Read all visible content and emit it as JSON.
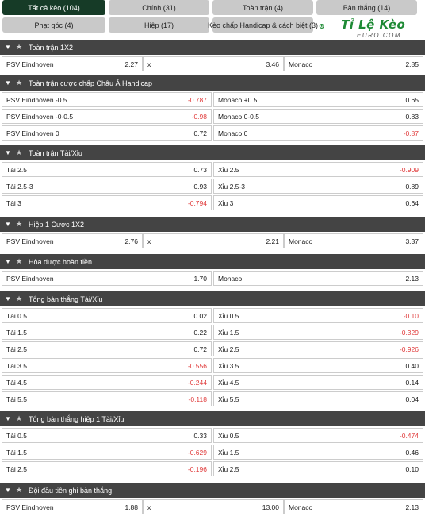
{
  "tabs": [
    {
      "label": "Tất cả kèo (104)",
      "active": true
    },
    {
      "label": "Chính (31)",
      "active": false
    },
    {
      "label": "Toàn trận (4)",
      "active": false
    },
    {
      "label": "Bàn thắng (14)",
      "active": false
    },
    {
      "label": "Phạt góc (4)",
      "active": false
    },
    {
      "label": "Hiệp (17)",
      "active": false
    },
    {
      "label": "Kèo chấp Handicap & cách biệt (3)",
      "active": false
    }
  ],
  "logo": {
    "text": "Tỉ Lệ Kèo",
    "sub": "EURO.COM"
  },
  "colors": {
    "active_tab": "#163b27",
    "header_bg": "#444444",
    "negative_odd": "#e03a3a"
  },
  "sections": [
    {
      "title": "Toàn trận 1X2",
      "layout": "three",
      "rows": [
        [
          {
            "label": "PSV Eindhoven",
            "odd": "2.27"
          },
          {
            "label": "x",
            "odd": "3.46"
          },
          {
            "label": "Monaco",
            "odd": "2.85"
          }
        ]
      ]
    },
    {
      "title": "Toàn trận cược chấp Châu Á Handicap",
      "layout": "two",
      "rows": [
        [
          {
            "label": "PSV Eindhoven -0.5",
            "odd": "-0.787"
          },
          {
            "label": "Monaco +0.5",
            "odd": "0.65"
          }
        ],
        [
          {
            "label": "PSV Eindhoven -0-0.5",
            "odd": "-0.98"
          },
          {
            "label": "Monaco 0-0.5",
            "odd": "0.83"
          }
        ],
        [
          {
            "label": "PSV Eindhoven 0",
            "odd": "0.72"
          },
          {
            "label": "Monaco 0",
            "odd": "-0.87"
          }
        ]
      ]
    },
    {
      "title": "Toàn trận Tài/Xỉu",
      "layout": "two",
      "rows": [
        [
          {
            "label": "Tài 2.5",
            "odd": "0.73"
          },
          {
            "label": "Xỉu 2.5",
            "odd": "-0.909"
          }
        ],
        [
          {
            "label": "Tài 2.5-3",
            "odd": "0.93"
          },
          {
            "label": "Xỉu 2.5-3",
            "odd": "0.89"
          }
        ],
        [
          {
            "label": "Tài 3",
            "odd": "-0.794"
          },
          {
            "label": "Xỉu 3",
            "odd": "0.64"
          }
        ]
      ]
    },
    {
      "title": "Hiệp 1 Cược 1X2",
      "layout": "three",
      "rows": [
        [
          {
            "label": "PSV Eindhoven",
            "odd": "2.76"
          },
          {
            "label": "x",
            "odd": "2.21"
          },
          {
            "label": "Monaco",
            "odd": "3.37"
          }
        ]
      ]
    },
    {
      "title": "Hòa được hoàn tiền",
      "layout": "two",
      "rows": [
        [
          {
            "label": "PSV Eindhoven",
            "odd": "1.70"
          },
          {
            "label": "Monaco",
            "odd": "2.13"
          }
        ]
      ]
    },
    {
      "title": "Tổng bàn thắng Tài/Xỉu",
      "layout": "two",
      "rows": [
        [
          {
            "label": "Tài 0.5",
            "odd": "0.02"
          },
          {
            "label": "Xỉu 0.5",
            "odd": "-0.10"
          }
        ],
        [
          {
            "label": "Tài 1.5",
            "odd": "0.22"
          },
          {
            "label": "Xỉu 1.5",
            "odd": "-0.329"
          }
        ],
        [
          {
            "label": "Tài 2.5",
            "odd": "0.72"
          },
          {
            "label": "Xỉu 2.5",
            "odd": "-0.926"
          }
        ],
        [
          {
            "label": "Tài 3.5",
            "odd": "-0.556"
          },
          {
            "label": "Xỉu 3.5",
            "odd": "0.40"
          }
        ],
        [
          {
            "label": "Tài 4.5",
            "odd": "-0.244"
          },
          {
            "label": "Xỉu 4.5",
            "odd": "0.14"
          }
        ],
        [
          {
            "label": "Tài 5.5",
            "odd": "-0.118"
          },
          {
            "label": "Xỉu 5.5",
            "odd": "0.04"
          }
        ]
      ]
    },
    {
      "title": "Tổng bàn thắng hiệp 1 Tài/Xỉu",
      "layout": "two",
      "rows": [
        [
          {
            "label": "Tài 0.5",
            "odd": "0.33"
          },
          {
            "label": "Xỉu 0.5",
            "odd": "-0.474"
          }
        ],
        [
          {
            "label": "Tài 1.5",
            "odd": "-0.629"
          },
          {
            "label": "Xỉu 1.5",
            "odd": "0.46"
          }
        ],
        [
          {
            "label": "Tài 2.5",
            "odd": "-0.196"
          },
          {
            "label": "Xỉu 2.5",
            "odd": "0.10"
          }
        ]
      ]
    },
    {
      "title": "Đội đầu tiên ghi bàn thắng",
      "layout": "three",
      "rows": [
        [
          {
            "label": "PSV Eindhoven",
            "odd": "1.88"
          },
          {
            "label": "x",
            "odd": "13.00"
          },
          {
            "label": "Monaco",
            "odd": "2.13"
          }
        ]
      ]
    }
  ]
}
